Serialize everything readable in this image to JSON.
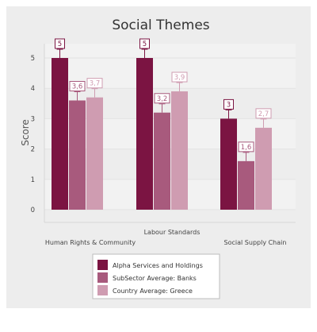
{
  "chart_data": {
    "type": "bar",
    "title": "Social Themes",
    "xlabel": "",
    "ylabel": "Score",
    "ylim": [
      0,
      5
    ],
    "yticks": [
      "0",
      "1",
      "2",
      "3",
      "4",
      "5"
    ],
    "categories": [
      "Human Rights & Community",
      "Labour Standards",
      "Social Supply Chain"
    ],
    "series": [
      {
        "name": "Alpha Services and Holdings",
        "values": [
          5,
          5,
          3
        ],
        "labels": [
          "5",
          "5",
          "3"
        ],
        "color": "#7b1442"
      },
      {
        "name": "SubSector Average: Banks",
        "values": [
          3.6,
          3.2,
          1.6
        ],
        "labels": [
          "3,6",
          "3,2",
          "1,6"
        ],
        "color": "#a85a7d"
      },
      {
        "name": "Country Average: Greece",
        "values": [
          3.7,
          3.9,
          2.7
        ],
        "labels": [
          "3,7",
          "3,9",
          "2,7"
        ],
        "color": "#cf9cb1"
      }
    ],
    "grid": true,
    "legend_position": "bottom",
    "error_bars": true
  }
}
